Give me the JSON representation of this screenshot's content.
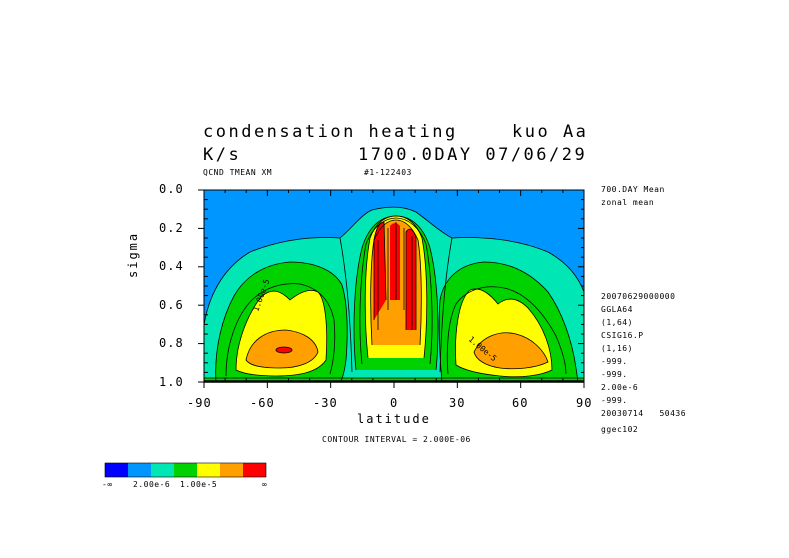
{
  "header": {
    "title_line1_left": "condensation heating",
    "title_line1_right": "kuo Aa",
    "title_line2_left": "K/s",
    "title_line2_right": "1700.0DAY 07/06/29",
    "sub_left": "QCND TMEAN XM",
    "sub_right": "#1-122403"
  },
  "side_info": [
    "700.DAY Mean",
    "zonal mean",
    "20070629000000",
    "GGLA64",
    "(1,64)",
    "CSIG16.P",
    "(1,16)",
    "-999.",
    "-999.",
    "2.00e-6",
    "-999.",
    "20030714   50436",
    "ggec102"
  ],
  "footer": {
    "contour_interval": "CONTOUR INTERVAL = 2.000E-06"
  },
  "legend": {
    "colors": [
      "#0000ff",
      "#0096ff",
      "#00e6b4",
      "#00d200",
      "#ffff00",
      "#ffa000",
      "#ff0000"
    ],
    "labels": [
      "-∞",
      "2.00e-6",
      "1.00e-5",
      "∞"
    ]
  },
  "chart_data": {
    "type": "heatmap",
    "title": "condensation heating",
    "xlabel": "latitude",
    "ylabel": "sigma",
    "xlim": [
      -90,
      90
    ],
    "ylim": [
      1.0,
      0.0
    ],
    "x_ticks": [
      -90,
      -60,
      -30,
      0,
      30,
      60,
      90
    ],
    "x_tick_labels": [
      "-90",
      "-60",
      "-30",
      "0",
      "30",
      "60",
      "90"
    ],
    "y_ticks": [
      0.0,
      0.2,
      0.4,
      0.6,
      0.8,
      1.0
    ],
    "y_tick_labels": [
      "0.0",
      "0.2",
      "0.4",
      "0.6",
      "0.8",
      "1.0"
    ],
    "contour_interval": 2e-06,
    "color_levels": [
      "< 0",
      "0 - 2.00e-6",
      "2.00e-6 - 4.00e-6",
      "4.00e-6 - 6.00e-6",
      "6.00e-6 - 8.00e-6",
      "8.00e-6 - 1.00e-5",
      "> 1.00e-5"
    ],
    "contour_labels": [
      {
        "text": "1.00e-5",
        "lat": -67,
        "sigma": 0.63
      },
      {
        "text": "1.00e-5",
        "lat": 41,
        "sigma": 0.81
      }
    ],
    "features": [
      {
        "name": "tropical maximum",
        "lat_range": [
          -12,
          12
        ],
        "sigma_range": [
          0.15,
          0.85
        ],
        "max_level": "> 1.00e-5"
      },
      {
        "name": "southern midlatitude maximum",
        "lat": -57,
        "sigma": 0.84,
        "max_level": "> 1.00e-5"
      },
      {
        "name": "northern midlatitude maximum",
        "lat": 53,
        "sigma": 0.84,
        "max_level": "> 1.00e-5"
      }
    ]
  }
}
